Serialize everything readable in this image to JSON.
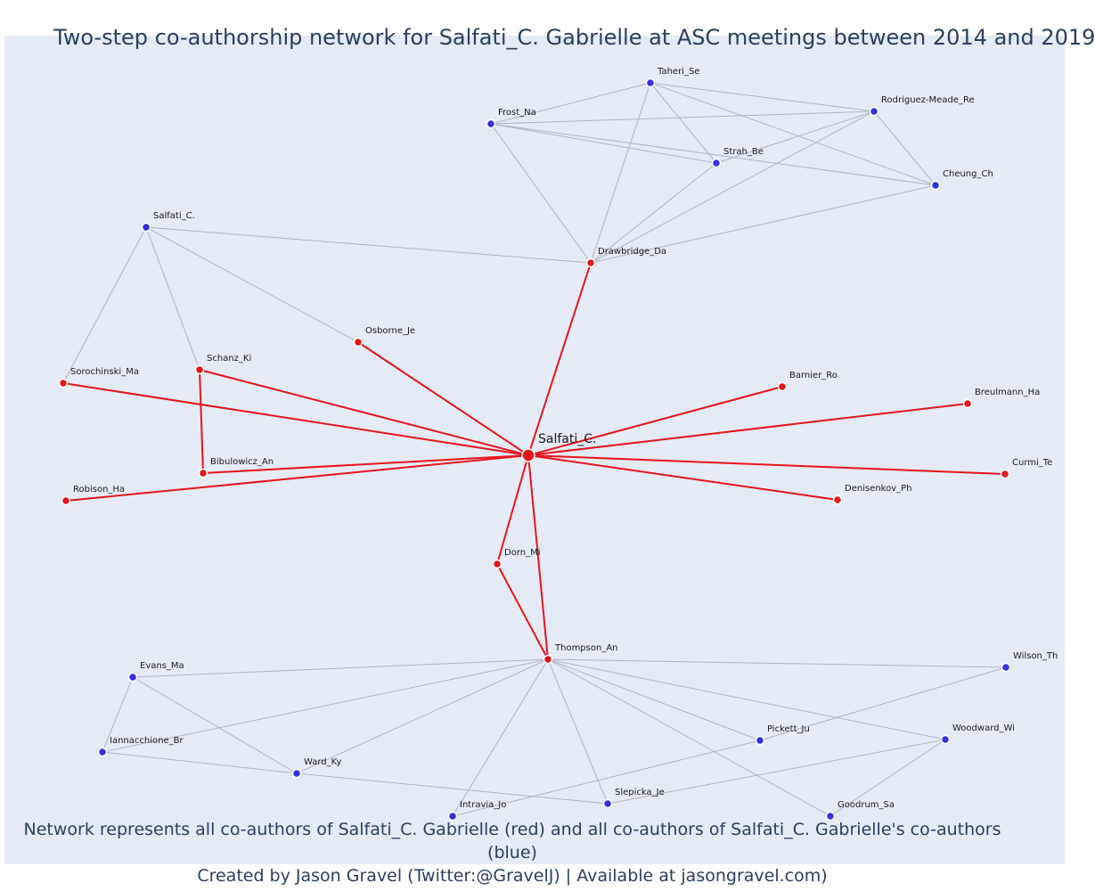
{
  "title": "Two-step co-authorship network for Salfati_C. Gabrielle at ASC meetings between 2014 and 2019",
  "caption_line1": "Network represents all co-authors of Salfati_C. Gabrielle (red) and all co-authors of Salfati_C. Gabrielle's co-authors (blue)",
  "caption_line2": "Created by Jason Gravel (Twitter:@GravelJ) | Available at jasongravel.com)",
  "colors": {
    "coauthor": "#e8141a",
    "second_step": "#3232e0",
    "edge_gray": "#aeb3c4",
    "background": "#e5ebf5"
  },
  "nodes": [
    {
      "id": "center",
      "label": "Salfati_C.",
      "group": "center"
    },
    {
      "id": "taheri",
      "label": "Taheri_Se",
      "group": "blue"
    },
    {
      "id": "rodriguez",
      "label": "Rodriguez-Meade_Re",
      "group": "blue"
    },
    {
      "id": "frost",
      "label": "Frost_Na",
      "group": "blue"
    },
    {
      "id": "strah",
      "label": "Strah_Be",
      "group": "blue"
    },
    {
      "id": "cheung",
      "label": "Cheung_Ch",
      "group": "blue"
    },
    {
      "id": "salfati_b",
      "label": "Salfati_C.",
      "group": "blue"
    },
    {
      "id": "drawbridge",
      "label": "Drawbridge_Da",
      "group": "red"
    },
    {
      "id": "osborne",
      "label": "Osborne_Je",
      "group": "red"
    },
    {
      "id": "schanz",
      "label": "Schanz_Ki",
      "group": "red"
    },
    {
      "id": "sorochinski",
      "label": "Sorochinski_Ma",
      "group": "red"
    },
    {
      "id": "barnier",
      "label": "Barnier_Ro",
      "group": "red"
    },
    {
      "id": "breulmann",
      "label": "Breulmann_Ha",
      "group": "red"
    },
    {
      "id": "bibulowicz",
      "label": "Bibulowicz_An",
      "group": "red"
    },
    {
      "id": "robison",
      "label": "Robison_Ha",
      "group": "red"
    },
    {
      "id": "curmi",
      "label": "Curmi_Te",
      "group": "red"
    },
    {
      "id": "denisenkov",
      "label": "Denisenkov_Ph",
      "group": "red"
    },
    {
      "id": "dorn",
      "label": "Dorn_Mi",
      "group": "red"
    },
    {
      "id": "thompson",
      "label": "Thompson_An",
      "group": "red"
    },
    {
      "id": "evans",
      "label": "Evans_Ma",
      "group": "blue"
    },
    {
      "id": "wilson",
      "label": "Wilson_Th",
      "group": "blue"
    },
    {
      "id": "iannacchione",
      "label": "Iannacchione_Br",
      "group": "blue"
    },
    {
      "id": "pickett",
      "label": "Pickett_Ju",
      "group": "blue"
    },
    {
      "id": "woodward",
      "label": "Woodward_Wi",
      "group": "blue"
    },
    {
      "id": "ward",
      "label": "Ward_Ky",
      "group": "blue"
    },
    {
      "id": "slepicka",
      "label": "Slepicka_Je",
      "group": "blue"
    },
    {
      "id": "intravia",
      "label": "Intravia_Jo",
      "group": "blue"
    },
    {
      "id": "goodrum",
      "label": "Goodrum_Sa",
      "group": "blue"
    }
  ],
  "edges": [
    {
      "s": "center",
      "t": "drawbridge",
      "type": "red"
    },
    {
      "s": "center",
      "t": "osborne",
      "type": "red"
    },
    {
      "s": "center",
      "t": "schanz",
      "type": "red"
    },
    {
      "s": "center",
      "t": "sorochinski",
      "type": "red"
    },
    {
      "s": "center",
      "t": "bibulowicz",
      "type": "red"
    },
    {
      "s": "center",
      "t": "robison",
      "type": "red"
    },
    {
      "s": "center",
      "t": "barnier",
      "type": "red"
    },
    {
      "s": "center",
      "t": "breulmann",
      "type": "red"
    },
    {
      "s": "center",
      "t": "curmi",
      "type": "red"
    },
    {
      "s": "center",
      "t": "denisenkov",
      "type": "red"
    },
    {
      "s": "center",
      "t": "dorn",
      "type": "red"
    },
    {
      "s": "center",
      "t": "thompson",
      "type": "red"
    },
    {
      "s": "dorn",
      "t": "thompson",
      "type": "red"
    },
    {
      "s": "schanz",
      "t": "bibulowicz",
      "type": "red"
    },
    {
      "s": "frost",
      "t": "taheri",
      "type": "gray"
    },
    {
      "s": "frost",
      "t": "rodriguez",
      "type": "gray"
    },
    {
      "s": "frost",
      "t": "strah",
      "type": "gray"
    },
    {
      "s": "frost",
      "t": "cheung",
      "type": "gray"
    },
    {
      "s": "frost",
      "t": "drawbridge",
      "type": "gray"
    },
    {
      "s": "taheri",
      "t": "rodriguez",
      "type": "gray"
    },
    {
      "s": "taheri",
      "t": "strah",
      "type": "gray"
    },
    {
      "s": "taheri",
      "t": "cheung",
      "type": "gray"
    },
    {
      "s": "taheri",
      "t": "drawbridge",
      "type": "gray"
    },
    {
      "s": "rodriguez",
      "t": "strah",
      "type": "gray"
    },
    {
      "s": "rodriguez",
      "t": "cheung",
      "type": "gray"
    },
    {
      "s": "rodriguez",
      "t": "drawbridge",
      "type": "gray"
    },
    {
      "s": "strah",
      "t": "drawbridge",
      "type": "gray"
    },
    {
      "s": "cheung",
      "t": "drawbridge",
      "type": "gray"
    },
    {
      "s": "salfati_b",
      "t": "drawbridge",
      "type": "gray"
    },
    {
      "s": "salfati_b",
      "t": "osborne",
      "type": "gray"
    },
    {
      "s": "salfati_b",
      "t": "schanz",
      "type": "gray"
    },
    {
      "s": "salfati_b",
      "t": "sorochinski",
      "type": "gray"
    },
    {
      "s": "thompson",
      "t": "evans",
      "type": "gray"
    },
    {
      "s": "thompson",
      "t": "iannacchione",
      "type": "gray"
    },
    {
      "s": "thompson",
      "t": "ward",
      "type": "gray"
    },
    {
      "s": "thompson",
      "t": "intravia",
      "type": "gray"
    },
    {
      "s": "thompson",
      "t": "slepicka",
      "type": "gray"
    },
    {
      "s": "thompson",
      "t": "pickett",
      "type": "gray"
    },
    {
      "s": "thompson",
      "t": "goodrum",
      "type": "gray"
    },
    {
      "s": "thompson",
      "t": "woodward",
      "type": "gray"
    },
    {
      "s": "thompson",
      "t": "wilson",
      "type": "gray"
    },
    {
      "s": "evans",
      "t": "iannacchione",
      "type": "gray"
    },
    {
      "s": "evans",
      "t": "ward",
      "type": "gray"
    },
    {
      "s": "iannacchione",
      "t": "ward",
      "type": "gray"
    },
    {
      "s": "ward",
      "t": "slepicka",
      "type": "gray"
    },
    {
      "s": "intravia",
      "t": "pickett",
      "type": "gray"
    },
    {
      "s": "pickett",
      "t": "wilson",
      "type": "gray"
    },
    {
      "s": "slepicka",
      "t": "woodward",
      "type": "gray"
    },
    {
      "s": "goodrum",
      "t": "woodward",
      "type": "gray"
    }
  ]
}
